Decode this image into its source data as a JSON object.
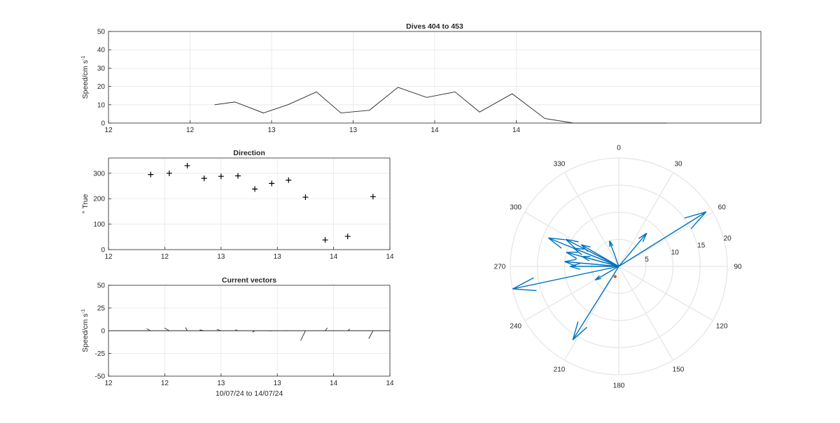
{
  "chart_data": [
    {
      "id": "speed",
      "type": "line",
      "title": "Dives 404 to 453",
      "ylabel": "Speed/cm s",
      "ylabel_superscript": "-1",
      "xlim": [
        0,
        8
      ],
      "ylim": [
        0,
        50
      ],
      "xticks": [
        0,
        1,
        2,
        3,
        4,
        5
      ],
      "xtick_labels": [
        "12",
        "12",
        "13",
        "13",
        "14",
        "14"
      ],
      "yticks": [
        0,
        10,
        20,
        30,
        40,
        50
      ],
      "grid": true,
      "series": [
        {
          "x": [
            1.3,
            1.55,
            1.9,
            2.2,
            2.55,
            2.85,
            3.2,
            3.55,
            3.9,
            4.25,
            4.55,
            4.95,
            5.35,
            5.7,
            6.05,
            6.45,
            6.85
          ],
          "values": [
            10,
            11.5,
            5.5,
            10,
            17,
            5.5,
            7,
            19.5,
            14,
            17,
            6,
            16,
            2.5,
            0,
            0,
            0,
            0
          ]
        }
      ]
    },
    {
      "id": "direction",
      "type": "scatter",
      "title": "Direction",
      "ylabel": "° True",
      "xlim": [
        0,
        5
      ],
      "ylim": [
        0,
        360
      ],
      "xticks": [
        0,
        1,
        2,
        3,
        4,
        5
      ],
      "xtick_labels": [
        "12",
        "12",
        "13",
        "13",
        "14",
        "14"
      ],
      "yticks": [
        0,
        100,
        200,
        300
      ],
      "grid": true,
      "x": [
        0.75,
        1.08,
        1.4,
        1.7,
        2.0,
        2.3,
        2.6,
        2.9,
        3.2,
        3.5,
        3.85,
        4.25,
        4.7
      ],
      "values": [
        295,
        300,
        330,
        280,
        288,
        290,
        238,
        260,
        273,
        206,
        38,
        52,
        208
      ]
    },
    {
      "id": "vectors",
      "type": "line",
      "title": "Current vectors",
      "ylabel": "Speed/cm s",
      "ylabel_superscript": "-1",
      "xlabel": "10/07/24 to 14/07/24",
      "xlim": [
        0,
        5
      ],
      "ylim": [
        -50,
        50
      ],
      "xticks": [
        0,
        1,
        2,
        3,
        4,
        5
      ],
      "xtick_labels": [
        "12",
        "12",
        "13",
        "13",
        "14",
        "14"
      ],
      "yticks": [
        -50,
        -25,
        0,
        25,
        50
      ],
      "grid": true,
      "x": [
        0.75,
        1.08,
        1.4,
        1.7,
        2.0,
        2.3,
        2.6,
        2.9,
        3.2,
        3.5,
        3.85,
        4.25,
        4.7
      ],
      "speed": [
        5,
        6,
        4,
        5,
        5,
        3,
        3,
        2,
        3,
        12,
        4,
        3,
        10
      ],
      "direction": [
        295,
        300,
        330,
        280,
        288,
        290,
        238,
        260,
        273,
        206,
        38,
        52,
        208
      ]
    },
    {
      "id": "compass",
      "type": "compass",
      "angle_ticks": [
        0,
        30,
        60,
        90,
        120,
        150,
        180,
        210,
        240,
        270,
        300,
        330
      ],
      "rlim": [
        0,
        20
      ],
      "rticks": [
        5,
        10,
        15,
        20
      ],
      "grid": true,
      "arrows": [
        {
          "speed": 19,
          "direction": 58
        },
        {
          "speed": 8,
          "direction": 40
        },
        {
          "speed": 5,
          "direction": 340
        },
        {
          "speed": 10,
          "direction": 285
        },
        {
          "speed": 20,
          "direction": 258
        },
        {
          "speed": 8,
          "direction": 300
        },
        {
          "speed": 11,
          "direction": 297
        },
        {
          "speed": 7,
          "direction": 285
        },
        {
          "speed": 5,
          "direction": 240
        },
        {
          "speed": 9,
          "direction": 270
        },
        {
          "speed": 16,
          "direction": 212
        },
        {
          "speed": 14,
          "direction": 292
        },
        {
          "speed": 10,
          "direction": 275
        },
        {
          "speed": 9,
          "direction": 292
        }
      ],
      "mean_point": {
        "speed": 2,
        "direction": 200
      },
      "arrow_color": "#0072BD",
      "mean_color": "#D95319"
    }
  ],
  "colors": {
    "line": "#262626",
    "grid": "#E6E6E6",
    "axis": "#262626"
  }
}
